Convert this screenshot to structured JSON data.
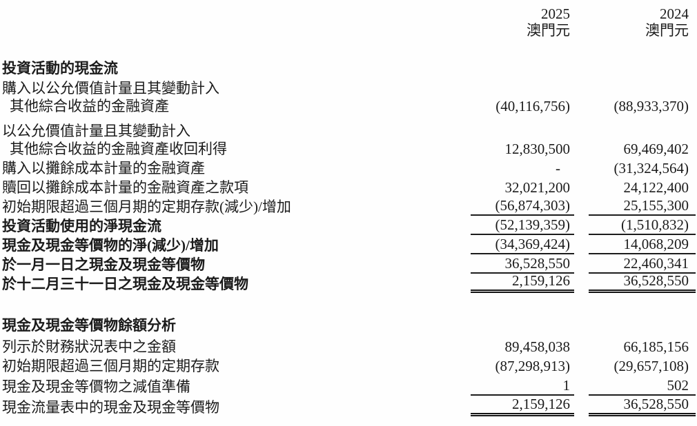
{
  "header": {
    "col_2025": {
      "year": "2025",
      "currency": "澳門元"
    },
    "col_2024": {
      "year": "2024",
      "currency": "澳門元"
    }
  },
  "rows": [
    {
      "type": "section_heading",
      "label": "投資活動的現金流"
    },
    {
      "type": "data_two_line",
      "label_line1": "購入以公允價值計量且其變動計入",
      "label_line2": "其他綜合收益的金融資產",
      "v2025": "(40,116,756)",
      "v2024": "(88,933,370)"
    },
    {
      "type": "data_two_line",
      "label_line1": "以公允價值計量且其變動計入",
      "label_line2": "其他綜合收益的金融資產收回利得",
      "v2025": "12,830,500",
      "v2024": "69,469,402"
    },
    {
      "type": "data",
      "label": "購入以攤餘成本計量的金融資產",
      "v2025": "-",
      "v2024": "(31,324,564)"
    },
    {
      "type": "data",
      "label": "贖回以攤餘成本計量的金融資產之款項",
      "v2025": "32,021,200",
      "v2024": "24,122,400"
    },
    {
      "type": "data",
      "label": "初始期限超過三個月期的定期存款(減少)/增加",
      "v2025": "(56,874,303)",
      "v2024": "25,155,300",
      "underline": "single"
    },
    {
      "type": "data",
      "bold": true,
      "label": "投資活動使用的淨現金流",
      "v2025": "(52,139,359)",
      "v2024": "(1,510,832)",
      "underline": "single"
    },
    {
      "type": "data",
      "bold": true,
      "label": "現金及現金等價物的淨(減少)/增加",
      "v2025": "(34,369,424)",
      "v2024": "14,068,209",
      "underline": "single"
    },
    {
      "type": "data",
      "bold": true,
      "label": "於一月一日之現金及現金等價物",
      "v2025": "36,528,550",
      "v2024": "22,460,341",
      "underline": "single"
    },
    {
      "type": "data",
      "bold": true,
      "label": "於十二月三十一日之現金及現金等價物",
      "v2025": "2,159,126",
      "v2024": "36,528,550",
      "underline": "double"
    },
    {
      "type": "section_heading",
      "label": "現金及現金等價物餘額分析"
    },
    {
      "type": "data",
      "label": "列示於財務狀況表中之金額",
      "v2025": "89,458,038",
      "v2024": "66,185,156"
    },
    {
      "type": "data",
      "label": "初始期限超過三個月期的定期存款",
      "v2025": "(87,298,913)",
      "v2024": "(29,657,108)"
    },
    {
      "type": "data",
      "label": "現金及現金等價物之減值準備",
      "v2025": "1",
      "v2024": "502",
      "underline": "single"
    },
    {
      "type": "data",
      "label": "現金流量表中的現金及現金等價物",
      "v2025": "2,159,126",
      "v2024": "36,528,550",
      "underline": "double"
    }
  ]
}
